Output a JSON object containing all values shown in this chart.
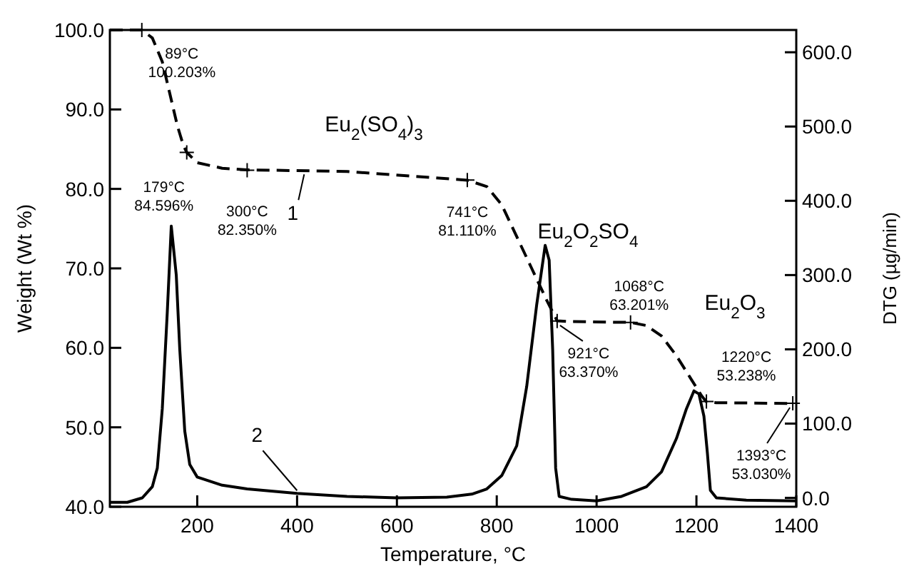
{
  "chart_data": {
    "type": "line",
    "xlabel": "Temperature, °C",
    "ylabel": "Weight (Wt %)",
    "y2label": "DTG (µg/min)",
    "xlim": [
      25,
      1400
    ],
    "xticks": [
      200,
      400,
      600,
      800,
      1000,
      1200,
      1400
    ],
    "ylim": [
      40,
      100
    ],
    "yticks": [
      {
        "value": 40,
        "label": "40.0"
      },
      {
        "value": 50,
        "label": "50.0"
      },
      {
        "value": 60,
        "label": "60.0"
      },
      {
        "value": 70,
        "label": "70.0"
      },
      {
        "value": 80,
        "label": "80.0"
      },
      {
        "value": 90,
        "label": "90.0"
      },
      {
        "value": 100,
        "label": "100.0"
      }
    ],
    "y2lim": [
      -12,
      630
    ],
    "y2ticks": [
      {
        "value": 0,
        "label": "0.0"
      },
      {
        "value": 100,
        "label": "100.0"
      },
      {
        "value": 200,
        "label": "200.0"
      },
      {
        "value": 300,
        "label": "300.0"
      },
      {
        "value": 400,
        "label": "400.0"
      },
      {
        "value": 500,
        "label": "500.0"
      },
      {
        "value": 600,
        "label": "600.0"
      }
    ],
    "grid": false,
    "marker": "none",
    "series": [
      {
        "name": "1",
        "color": "#000000",
        "line_style": "dashed",
        "x": [
          25,
          60,
          89,
          110,
          130,
          145,
          160,
          172,
          179,
          200,
          250,
          300,
          500,
          741,
          780,
          810,
          840,
          870,
          900,
          921,
          950,
          1068,
          1100,
          1130,
          1160,
          1190,
          1210,
          1220,
          1240,
          1393
        ],
        "values": [
          100,
          100,
          100,
          99,
          96,
          92,
          88,
          85.5,
          84.6,
          83.3,
          82.6,
          82.4,
          82.2,
          81.1,
          80.3,
          78,
          74,
          70,
          66,
          63.4,
          63.3,
          63.2,
          62.8,
          61.5,
          59,
          56,
          54,
          53.2,
          53.1,
          53
        ]
      },
      {
        "name": "2",
        "color": "#000000",
        "line_style": "solid",
        "axis": "y2",
        "x": [
          25,
          60,
          90,
          110,
          120,
          130,
          140,
          148,
          158,
          165,
          175,
          185,
          200,
          250,
          300,
          400,
          500,
          600,
          700,
          750,
          780,
          810,
          840,
          860,
          880,
          897,
          905,
          912,
          918,
          925,
          950,
          1000,
          1050,
          1100,
          1130,
          1160,
          1180,
          1195,
          1205,
          1215,
          1222,
          1228,
          1240,
          1300,
          1400
        ],
        "values": [
          -6,
          -6,
          0,
          15,
          40,
          120,
          250,
          366,
          300,
          200,
          90,
          45,
          28,
          17,
          12,
          6,
          2,
          0,
          1,
          5,
          12,
          30,
          70,
          150,
          260,
          340,
          320,
          200,
          40,
          2,
          -2,
          -4,
          2,
          15,
          35,
          80,
          120,
          144,
          140,
          110,
          60,
          10,
          0,
          -3,
          -4
        ]
      }
    ],
    "annotations": [
      {
        "text": "89°C\n100.203%",
        "x": 89,
        "y": 100
      },
      {
        "text": "179°C\n84.596%",
        "x": 179,
        "y": 84.596
      },
      {
        "text": "300°C\n82.350%",
        "x": 300,
        "y": 82.35
      },
      {
        "text": "741°C\n81.110%",
        "x": 741,
        "y": 81.11
      },
      {
        "text": "921°C\n63.370%",
        "x": 921,
        "y": 63.37
      },
      {
        "text": "1068°C\n63.201%",
        "x": 1068,
        "y": 63.201
      },
      {
        "text": "1220°C\n53.238%",
        "x": 1220,
        "y": 53.238
      },
      {
        "text": "1393°C\n53.030%",
        "x": 1393,
        "y": 53.03
      },
      "Eu$_{2}$(SO$_{4}$)$_{3}$",
      "Eu$_{2}$O$_{2}$SO$_{4}$",
      "Eu$_{2}$O$_{3}$"
    ]
  }
}
